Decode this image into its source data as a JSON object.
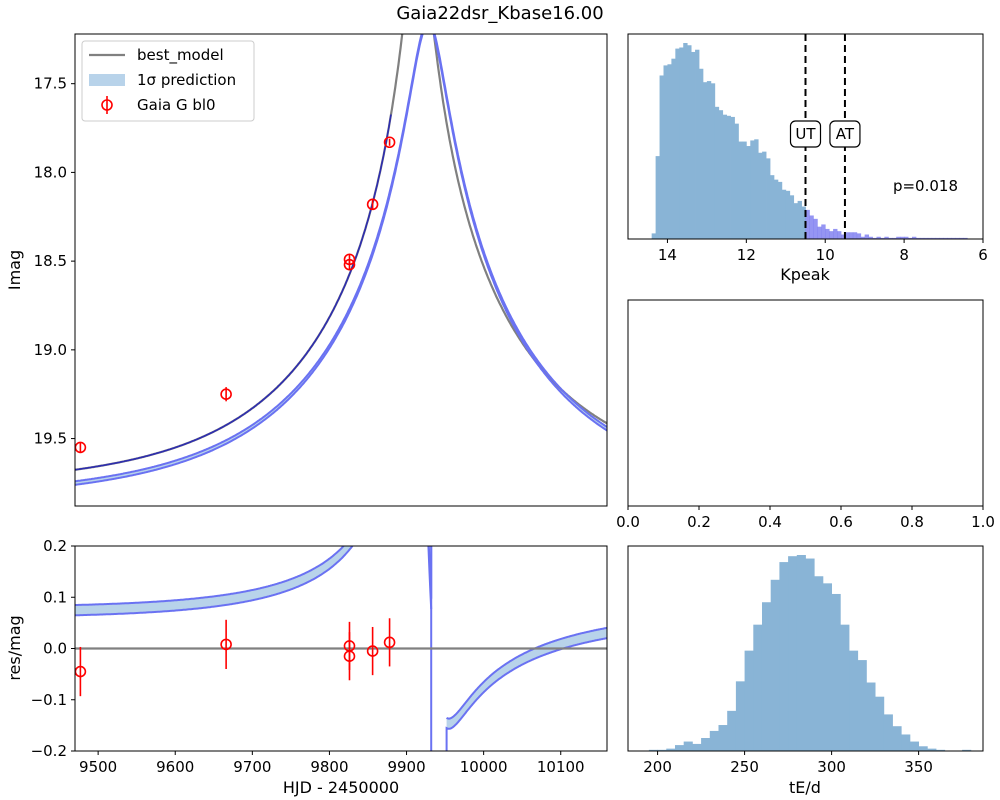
{
  "title": "Gaia22dsr_Kbase16.00",
  "colors": {
    "model": "#808080",
    "band_fill": "#b8d3ea",
    "band_edge": "#6a72f2",
    "center": "#2d2db0",
    "data": "#ff0000",
    "hist": "#89b4d6",
    "hist_tail": "#7b7bf0",
    "vline": "#000000"
  },
  "chart_data": [
    {
      "id": "lightcurve",
      "type": "line",
      "ylabel": "Imag",
      "xlim": [
        9470,
        10160
      ],
      "ylim": [
        19.88,
        17.22
      ],
      "yticks": [
        17.5,
        18.0,
        18.5,
        19.0,
        19.5
      ],
      "ytick_labels": [
        "17.5",
        "18.0",
        "18.5",
        "19.0",
        "19.5"
      ],
      "model": {
        "t0": 9915,
        "umin": 0.05,
        "tE": 272,
        "fs": 0.95,
        "Ibase": 19.78,
        "shift": 0.06
      },
      "band": {
        "t0": 9928,
        "umin": 0.08,
        "tE": 275,
        "spread": 0.02
      },
      "legend": {
        "loc": "upper-left",
        "entries": [
          {
            "label": "best_model",
            "kind": "line"
          },
          {
            "label": "1σ prediction",
            "kind": "patch"
          },
          {
            "label": "Gaia G bl0",
            "kind": "errorbar"
          }
        ]
      },
      "points": [
        {
          "x": 9477,
          "y": 19.55,
          "err": 0.03
        },
        {
          "x": 9666,
          "y": 19.25,
          "err": 0.04
        },
        {
          "x": 9826,
          "y": 18.49,
          "err": 0.03
        },
        {
          "x": 9826,
          "y": 18.52,
          "err": 0.03
        },
        {
          "x": 9856,
          "y": 18.18,
          "err": 0.03
        },
        {
          "x": 9878,
          "y": 17.83,
          "err": 0.02
        }
      ]
    },
    {
      "id": "residuals",
      "type": "line",
      "xlabel": "HJD - 2450000",
      "ylabel": "res/mag",
      "xlim": [
        9470,
        10160
      ],
      "ylim": [
        -0.2,
        0.2
      ],
      "xticks": [
        9500,
        9600,
        9700,
        9800,
        9900,
        10000,
        10100
      ],
      "xtick_labels": [
        "9500",
        "9600",
        "9700",
        "9800",
        "9900",
        "10000",
        "10100"
      ],
      "yticks": [
        -0.2,
        -0.1,
        0.0,
        0.1,
        0.2
      ],
      "ytick_labels": [
        "−0.2",
        "−0.1",
        "0.0",
        "0.1",
        "0.2"
      ],
      "points": [
        {
          "x": 9477,
          "y": -0.045,
          "err": 0.048
        },
        {
          "x": 9666,
          "y": 0.008,
          "err": 0.048
        },
        {
          "x": 9826,
          "y": 0.005,
          "err": 0.047
        },
        {
          "x": 9826,
          "y": -0.015,
          "err": 0.047
        },
        {
          "x": 9856,
          "y": -0.005,
          "err": 0.047
        },
        {
          "x": 9878,
          "y": 0.012,
          "err": 0.047
        }
      ]
    },
    {
      "id": "kpeak_hist",
      "type": "bar",
      "xlabel": "Kpeak",
      "xlim": [
        15,
        6
      ],
      "xticks": [
        14,
        12,
        10,
        8,
        6
      ],
      "xtick_labels": [
        "14",
        "12",
        "10",
        "8",
        "6"
      ],
      "bin_start": 14.4,
      "bin_width": -0.1,
      "counts": [
        5,
        74,
        146,
        155,
        156,
        161,
        170,
        171,
        175,
        173,
        167,
        169,
        152,
        140,
        141,
        139,
        118,
        115,
        111,
        110,
        109,
        103,
        87,
        87,
        83,
        88,
        89,
        77,
        78,
        72,
        57,
        53,
        51,
        44,
        43,
        39,
        32,
        34,
        29,
        26,
        21,
        18,
        11,
        13,
        9,
        7,
        9,
        7,
        4,
        6,
        6,
        6,
        5,
        2,
        4,
        2,
        1,
        2,
        1,
        2,
        1,
        1,
        2,
        2,
        2,
        1,
        2,
        1,
        1,
        1,
        1,
        1,
        1,
        1,
        1,
        1,
        1,
        1,
        1,
        1
      ],
      "tail_threshold": 10.5,
      "vlines": [
        {
          "x": 10.5,
          "label": "UT"
        },
        {
          "x": 9.5,
          "label": "AT"
        }
      ],
      "annotation": "p=0.018"
    },
    {
      "id": "empty_panel",
      "type": "scatter",
      "xlim": [
        0.0,
        1.0
      ],
      "xticks": [
        0.0,
        0.2,
        0.4,
        0.6,
        0.8,
        1.0
      ],
      "xtick_labels": [
        "0.0",
        "0.2",
        "0.4",
        "0.6",
        "0.8",
        "1.0"
      ]
    },
    {
      "id": "te_hist",
      "type": "bar",
      "xlabel": "tE/d",
      "xlim": [
        183,
        387
      ],
      "xticks": [
        200,
        250,
        300,
        350
      ],
      "xtick_labels": [
        "200",
        "250",
        "300",
        "350"
      ],
      "bin_start": 195,
      "bin_width": 5,
      "counts": [
        1,
        1,
        2,
        5,
        8,
        6,
        11,
        17,
        22,
        34,
        59,
        85,
        107,
        126,
        145,
        160,
        165,
        166,
        163,
        148,
        142,
        133,
        107,
        85,
        77,
        58,
        46,
        31,
        21,
        14,
        8,
        4,
        2,
        1,
        0,
        0,
        1
      ]
    }
  ]
}
